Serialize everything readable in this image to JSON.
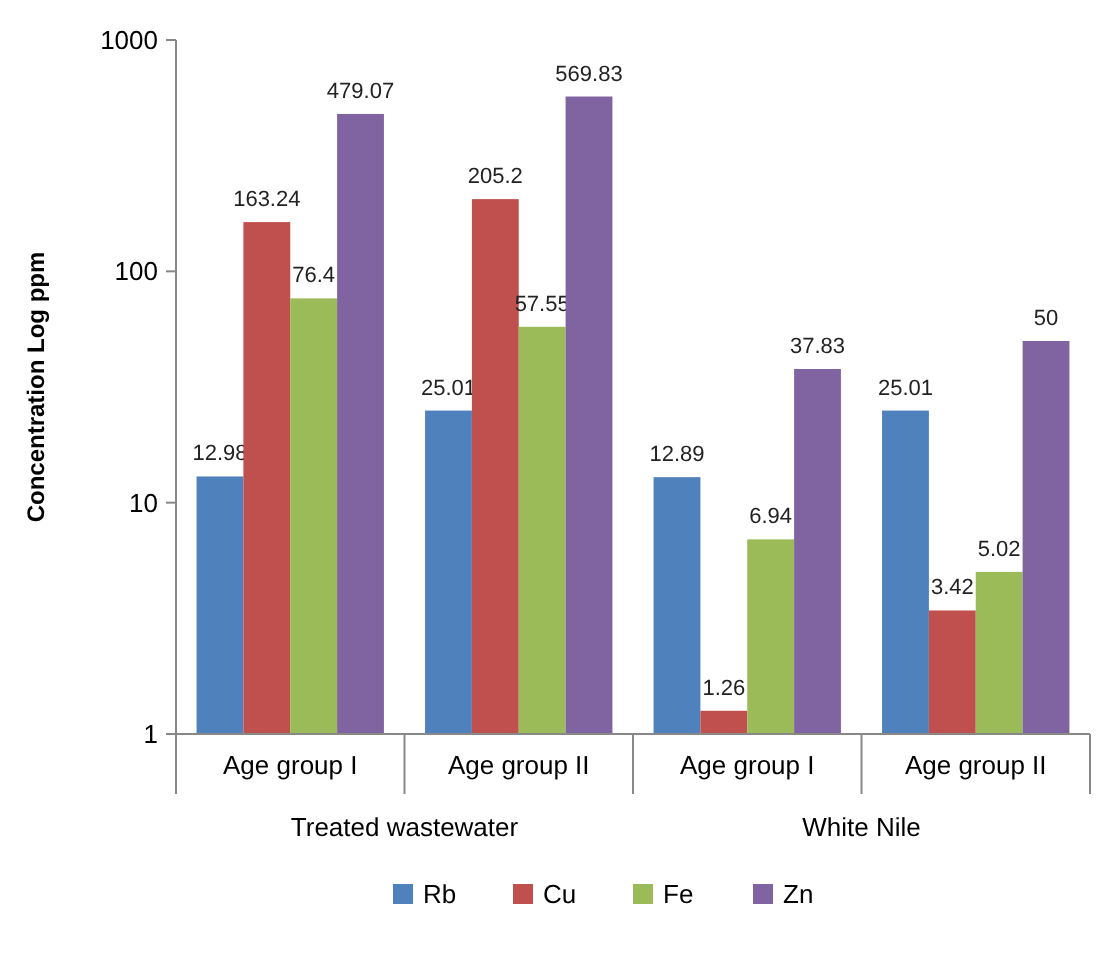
{
  "chart_data": {
    "type": "bar",
    "ylabel": "Concentration Log ppm",
    "categories": [
      "Age group I",
      "Age group II",
      "Age group I",
      "Age group II"
    ],
    "series": [
      {
        "name": "Rb",
        "color": "#4f81bd",
        "values": [
          12.98,
          25.01,
          12.89,
          25.01
        ]
      },
      {
        "name": "Cu",
        "color": "#c0504d",
        "values": [
          163.24,
          205.2,
          1.26,
          3.42
        ]
      },
      {
        "name": "Fe",
        "color": "#9bbb59",
        "values": [
          76.4,
          57.55,
          6.94,
          5.02
        ]
      },
      {
        "name": "Zn",
        "color": "#8064a2",
        "values": [
          479.07,
          569.83,
          37.83,
          50
        ]
      }
    ],
    "log": true,
    "ylim": [
      1,
      1000
    ],
    "yticks": [
      1,
      10,
      100,
      1000
    ],
    "data_labels": true,
    "legend": "bottom",
    "grid": false,
    "annotations": [
      "Treated wastewater",
      "White Nile"
    ]
  }
}
